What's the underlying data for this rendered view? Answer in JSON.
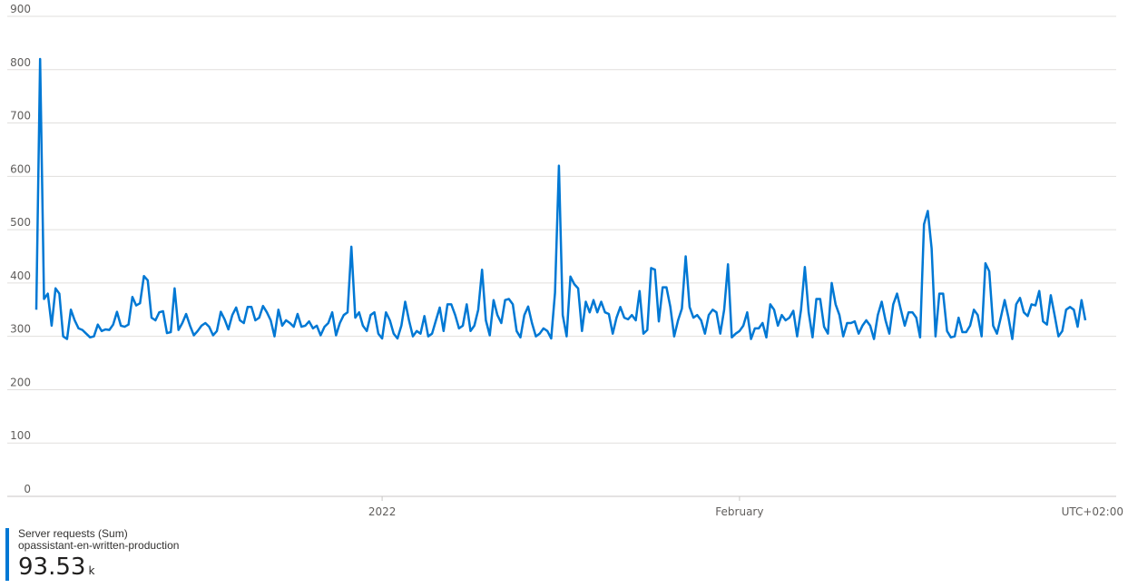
{
  "chart_data": {
    "type": "line",
    "y_ticks": [
      "900",
      "800",
      "700",
      "600",
      "500",
      "400",
      "300",
      "200",
      "100",
      "0"
    ],
    "ylim": [
      0,
      900
    ],
    "x_ticks": [
      {
        "label": "2022",
        "day_index": 30
      },
      {
        "label": "February",
        "day_index": 61
      }
    ],
    "timezone_label": "UTC+02:00",
    "grid": true,
    "series": [
      {
        "name": "Server requests (Sum)",
        "color": "#0078d4",
        "values": [
          350,
          820,
          370,
          380,
          320,
          390,
          380,
          300,
          295,
          350,
          330,
          315,
          312,
          305,
          298,
          300,
          322,
          310,
          313,
          312,
          322,
          346,
          320,
          318,
          322,
          374,
          358,
          362,
          413,
          405,
          335,
          330,
          345,
          347,
          306,
          308,
          390,
          312,
          325,
          342,
          320,
          302,
          310,
          320,
          325,
          318,
          302,
          310,
          346,
          332,
          313,
          340,
          354,
          330,
          325,
          355,
          355,
          330,
          335,
          357,
          345,
          330,
          300,
          350,
          320,
          330,
          325,
          318,
          342,
          318,
          320,
          328,
          315,
          320,
          302,
          318,
          325,
          345,
          302,
          325,
          340,
          345,
          468,
          335,
          345,
          320,
          310,
          340,
          345,
          305,
          296,
          345,
          330,
          305,
          296,
          320,
          365,
          330,
          300,
          310,
          305,
          338,
          300,
          305,
          330,
          354,
          310,
          360,
          360,
          340,
          315,
          320,
          360,
          310,
          320,
          350,
          425,
          330,
          302,
          368,
          340,
          325,
          368,
          370,
          360,
          310,
          298,
          340,
          356,
          325,
          300,
          305,
          315,
          310,
          296,
          382,
          620,
          340,
          300,
          412,
          398,
          390,
          310,
          365,
          345,
          368,
          345,
          365,
          345,
          342,
          305,
          335,
          355,
          335,
          332,
          340,
          330,
          385,
          305,
          312,
          428,
          425,
          328,
          392,
          392,
          355,
          300,
          330,
          352,
          450,
          355,
          335,
          340,
          330,
          305,
          340,
          350,
          345,
          305,
          350,
          435,
          298,
          305,
          310,
          320,
          345,
          295,
          315,
          315,
          325,
          298,
          360,
          350,
          320,
          340,
          330,
          335,
          348,
          300,
          350,
          430,
          345,
          298,
          370,
          370,
          318,
          305,
          400,
          360,
          340,
          300,
          325,
          325,
          328,
          305,
          320,
          330,
          320,
          295,
          340,
          365,
          330,
          305,
          360,
          380,
          350,
          320,
          345,
          345,
          335,
          298,
          510,
          535,
          465,
          300,
          380,
          380,
          310,
          298,
          300,
          335,
          308,
          308,
          320,
          350,
          340,
          300,
          437,
          422,
          320,
          305,
          335,
          368,
          335,
          295,
          360,
          372,
          345,
          338,
          360,
          358,
          385,
          328,
          322,
          377,
          340,
          300,
          310,
          350,
          355,
          350,
          318,
          368,
          330
        ]
      }
    ],
    "legend": {
      "metric": "Server requests (Sum)",
      "resource": "opassistant-en-written-production",
      "total": "93.53",
      "unit": "k",
      "color": "#0078d4"
    }
  }
}
